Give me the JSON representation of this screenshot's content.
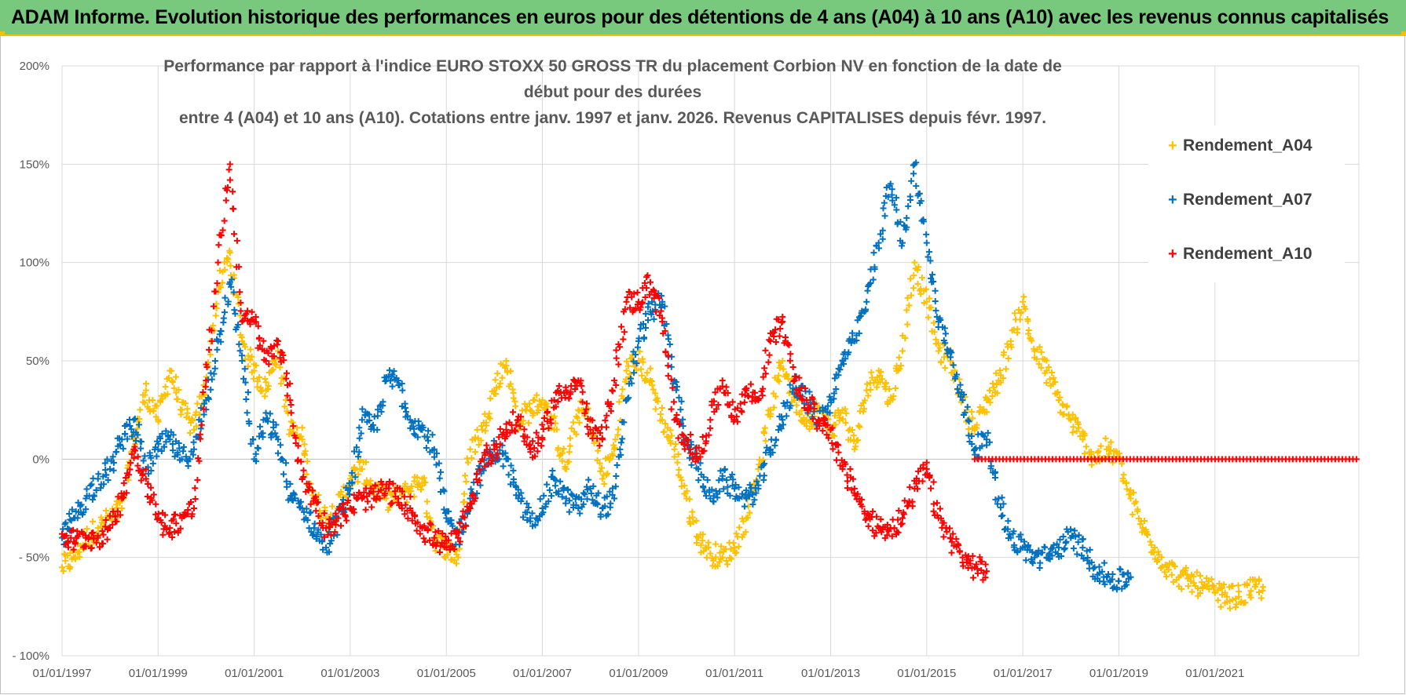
{
  "header": {
    "banner_title": "ADAM Informe. Evolution historique des performances en euros pour des détentions de 4 ans (A04) à 10 ans (A10) avec les revenus connus capitalisés",
    "banner_color": "#78c87e",
    "banner_border_color": "#f2c200"
  },
  "chart_data": {
    "type": "scatter",
    "title_line1": "Performance par rapport à l'indice EURO STOXX 50 GROSS TR  du placement Corbion NV en fonction de la date de début pour des durées",
    "title_line2": "entre 4 (A04) et 10 ans (A10).  Cotations entre janv. 1997 et janv. 2026. Revenus CAPITALISES depuis févr. 1997.",
    "xlabel": "",
    "ylabel": "",
    "x_range": [
      "1997-01-01",
      "2023-12-31"
    ],
    "ylim": [
      -100,
      200
    ],
    "y_ticks": [
      200,
      150,
      100,
      50,
      0,
      -50,
      -100
    ],
    "y_tick_labels": [
      "200%",
      "150%",
      "100%",
      "50%",
      "0%",
      "- 50%",
      "- 100%"
    ],
    "x_ticks": [
      "1997-01-01",
      "1999-01-01",
      "2001-01-01",
      "2003-01-01",
      "2005-01-01",
      "2007-01-01",
      "2009-01-01",
      "2011-01-01",
      "2013-01-01",
      "2015-01-01",
      "2017-01-01",
      "2019-01-01",
      "2021-01-01"
    ],
    "x_tick_labels": [
      "01/01/1997",
      "01/01/1999",
      "01/01/2001",
      "01/01/2003",
      "01/01/2005",
      "01/01/2007",
      "01/01/2009",
      "01/01/2011",
      "01/01/2013",
      "01/01/2015",
      "01/01/2017",
      "01/01/2019",
      "01/01/2021"
    ],
    "grid": true,
    "marker": "+",
    "legend_position": "top-right",
    "series": [
      {
        "name": "Rendement_A04",
        "color": "#ffc000",
        "points": [
          [
            "1997-01-01",
            -55
          ],
          [
            "1997-04-01",
            -50
          ],
          [
            "1997-07-01",
            -40
          ],
          [
            "1997-10-01",
            -35
          ],
          [
            "1998-01-01",
            -30
          ],
          [
            "1998-04-01",
            -25
          ],
          [
            "1998-07-01",
            10
          ],
          [
            "1998-10-01",
            35
          ],
          [
            "1999-01-01",
            20
          ],
          [
            "1999-04-01",
            45
          ],
          [
            "1999-07-01",
            25
          ],
          [
            "1999-10-01",
            15
          ],
          [
            "2000-01-01",
            40
          ],
          [
            "2000-04-01",
            85
          ],
          [
            "2000-07-01",
            105
          ],
          [
            "2000-10-01",
            60
          ],
          [
            "2001-01-01",
            45
          ],
          [
            "2001-04-01",
            35
          ],
          [
            "2001-07-01",
            55
          ],
          [
            "2001-10-01",
            15
          ],
          [
            "2002-01-01",
            10
          ],
          [
            "2002-04-01",
            -20
          ],
          [
            "2002-07-01",
            -30
          ],
          [
            "2002-10-01",
            -25
          ],
          [
            "2003-01-01",
            -10
          ],
          [
            "2003-04-01",
            -5
          ],
          [
            "2003-07-01",
            -15
          ],
          [
            "2003-10-01",
            -20
          ],
          [
            "2004-01-01",
            -20
          ],
          [
            "2004-04-01",
            -15
          ],
          [
            "2004-07-01",
            -10
          ],
          [
            "2004-10-01",
            -40
          ],
          [
            "2005-01-01",
            -45
          ],
          [
            "2005-04-01",
            -50
          ],
          [
            "2005-07-01",
            5
          ],
          [
            "2005-10-01",
            15
          ],
          [
            "2006-01-01",
            35
          ],
          [
            "2006-04-01",
            50
          ],
          [
            "2006-07-01",
            20
          ],
          [
            "2006-10-01",
            25
          ],
          [
            "2007-01-01",
            30
          ],
          [
            "2007-04-01",
            15
          ],
          [
            "2007-07-01",
            -5
          ],
          [
            "2007-10-01",
            25
          ],
          [
            "2008-01-01",
            20
          ],
          [
            "2008-04-01",
            -10
          ],
          [
            "2008-07-01",
            5
          ],
          [
            "2008-10-01",
            45
          ],
          [
            "2009-01-01",
            50
          ],
          [
            "2009-04-01",
            40
          ],
          [
            "2009-07-01",
            20
          ],
          [
            "2009-10-01",
            5
          ],
          [
            "2010-01-01",
            -20
          ],
          [
            "2010-04-01",
            -40
          ],
          [
            "2010-07-01",
            -48
          ],
          [
            "2010-10-01",
            -50
          ],
          [
            "2011-01-01",
            -45
          ],
          [
            "2011-04-01",
            -30
          ],
          [
            "2011-07-01",
            -5
          ],
          [
            "2011-10-01",
            25
          ],
          [
            "2012-01-01",
            50
          ],
          [
            "2012-04-01",
            30
          ],
          [
            "2012-07-01",
            20
          ],
          [
            "2012-10-01",
            25
          ],
          [
            "2013-01-01",
            15
          ],
          [
            "2013-04-01",
            25
          ],
          [
            "2013-07-01",
            5
          ],
          [
            "2013-10-01",
            35
          ],
          [
            "2014-01-01",
            45
          ],
          [
            "2014-04-01",
            30
          ],
          [
            "2014-07-01",
            55
          ],
          [
            "2014-10-01",
            100
          ],
          [
            "2015-01-01",
            80
          ],
          [
            "2015-04-01",
            55
          ],
          [
            "2015-07-01",
            50
          ],
          [
            "2015-10-01",
            30
          ],
          [
            "2016-01-01",
            15
          ],
          [
            "2016-04-01",
            30
          ],
          [
            "2016-07-01",
            40
          ],
          [
            "2016-10-01",
            60
          ],
          [
            "2017-01-01",
            80
          ],
          [
            "2017-04-01",
            55
          ],
          [
            "2017-07-01",
            45
          ],
          [
            "2017-10-01",
            30
          ],
          [
            "2018-01-01",
            20
          ],
          [
            "2018-04-01",
            10
          ],
          [
            "2018-07-01",
            0
          ],
          [
            "2018-10-01",
            5
          ],
          [
            "2019-01-01",
            0
          ],
          [
            "2019-04-01",
            -20
          ],
          [
            "2019-07-01",
            -35
          ],
          [
            "2019-10-01",
            -45
          ],
          [
            "2020-01-01",
            -55
          ],
          [
            "2020-04-01",
            -60
          ],
          [
            "2020-07-01",
            -62
          ],
          [
            "2020-10-01",
            -65
          ],
          [
            "2021-01-01",
            -68
          ],
          [
            "2021-04-01",
            -70
          ],
          [
            "2021-07-01",
            -70
          ],
          [
            "2021-10-01",
            -67
          ],
          [
            "2022-01-01",
            -65
          ]
        ]
      },
      {
        "name": "Rendement_A07",
        "color": "#0070c0",
        "points": [
          [
            "1997-01-01",
            -40
          ],
          [
            "1997-04-01",
            -30
          ],
          [
            "1997-07-01",
            -20
          ],
          [
            "1997-10-01",
            -10
          ],
          [
            "1998-01-01",
            -5
          ],
          [
            "1998-04-01",
            10
          ],
          [
            "1998-07-01",
            20
          ],
          [
            "1998-10-01",
            -5
          ],
          [
            "1999-01-01",
            5
          ],
          [
            "1999-04-01",
            10
          ],
          [
            "1999-07-01",
            0
          ],
          [
            "1999-10-01",
            5
          ],
          [
            "2000-01-01",
            30
          ],
          [
            "2000-04-01",
            60
          ],
          [
            "2000-07-01",
            90
          ],
          [
            "2000-10-01",
            50
          ],
          [
            "2001-01-01",
            0
          ],
          [
            "2001-04-01",
            20
          ],
          [
            "2001-07-01",
            10
          ],
          [
            "2001-10-01",
            -20
          ],
          [
            "2002-01-01",
            -25
          ],
          [
            "2002-04-01",
            -35
          ],
          [
            "2002-07-01",
            -45
          ],
          [
            "2002-10-01",
            -30
          ],
          [
            "2003-01-01",
            -15
          ],
          [
            "2003-04-01",
            20
          ],
          [
            "2003-07-01",
            15
          ],
          [
            "2003-10-01",
            40
          ],
          [
            "2004-01-01",
            40
          ],
          [
            "2004-04-01",
            20
          ],
          [
            "2004-07-01",
            15
          ],
          [
            "2004-10-01",
            5
          ],
          [
            "2005-01-01",
            -30
          ],
          [
            "2005-04-01",
            -40
          ],
          [
            "2005-07-01",
            -20
          ],
          [
            "2005-10-01",
            -5
          ],
          [
            "2006-01-01",
            5
          ],
          [
            "2006-04-01",
            0
          ],
          [
            "2006-07-01",
            -20
          ],
          [
            "2006-10-01",
            -30
          ],
          [
            "2007-01-01",
            -25
          ],
          [
            "2007-04-01",
            -10
          ],
          [
            "2007-07-01",
            -20
          ],
          [
            "2007-10-01",
            -25
          ],
          [
            "2008-01-01",
            -15
          ],
          [
            "2008-04-01",
            -25
          ],
          [
            "2008-07-01",
            -20
          ],
          [
            "2008-10-01",
            30
          ],
          [
            "2009-01-01",
            60
          ],
          [
            "2009-04-01",
            75
          ],
          [
            "2009-07-01",
            80
          ],
          [
            "2009-10-01",
            40
          ],
          [
            "2010-01-01",
            10
          ],
          [
            "2010-04-01",
            -5
          ],
          [
            "2010-07-01",
            -20
          ],
          [
            "2010-10-01",
            -10
          ],
          [
            "2011-01-01",
            -15
          ],
          [
            "2011-04-01",
            -20
          ],
          [
            "2011-07-01",
            -15
          ],
          [
            "2011-10-01",
            5
          ],
          [
            "2012-01-01",
            20
          ],
          [
            "2012-04-01",
            40
          ],
          [
            "2012-07-01",
            30
          ],
          [
            "2012-10-01",
            20
          ],
          [
            "2013-01-01",
            30
          ],
          [
            "2013-04-01",
            50
          ],
          [
            "2013-07-01",
            60
          ],
          [
            "2013-10-01",
            80
          ],
          [
            "2014-01-01",
            110
          ],
          [
            "2014-04-01",
            140
          ],
          [
            "2014-07-01",
            110
          ],
          [
            "2014-10-01",
            150
          ],
          [
            "2015-01-01",
            110
          ],
          [
            "2015-04-01",
            70
          ],
          [
            "2015-07-01",
            55
          ],
          [
            "2015-10-01",
            30
          ],
          [
            "2016-01-01",
            5
          ],
          [
            "2016-04-01",
            10
          ],
          [
            "2016-07-01",
            -20
          ],
          [
            "2016-10-01",
            -40
          ],
          [
            "2017-01-01",
            -45
          ],
          [
            "2017-04-01",
            -50
          ],
          [
            "2017-07-01",
            -50
          ],
          [
            "2017-10-01",
            -45
          ],
          [
            "2018-01-01",
            -40
          ],
          [
            "2018-04-01",
            -45
          ],
          [
            "2018-07-01",
            -55
          ],
          [
            "2018-10-01",
            -60
          ],
          [
            "2019-01-01",
            -62
          ],
          [
            "2019-04-01",
            -60
          ]
        ]
      },
      {
        "name": "Rendement_A10",
        "color": "#ff0000",
        "points": [
          [
            "1997-01-01",
            -38
          ],
          [
            "1997-04-01",
            -42
          ],
          [
            "1997-07-01",
            -40
          ],
          [
            "1997-10-01",
            -40
          ],
          [
            "1998-01-01",
            -35
          ],
          [
            "1998-04-01",
            -20
          ],
          [
            "1998-07-01",
            5
          ],
          [
            "1998-10-01",
            -10
          ],
          [
            "1999-01-01",
            -30
          ],
          [
            "1999-04-01",
            -35
          ],
          [
            "1999-07-01",
            -30
          ],
          [
            "1999-10-01",
            -25
          ],
          [
            "2000-01-01",
            40
          ],
          [
            "2000-04-01",
            100
          ],
          [
            "2000-07-01",
            150
          ],
          [
            "2000-10-01",
            70
          ],
          [
            "2001-01-01",
            70
          ],
          [
            "2001-04-01",
            50
          ],
          [
            "2001-07-01",
            60
          ],
          [
            "2001-10-01",
            30
          ],
          [
            "2002-01-01",
            -10
          ],
          [
            "2002-04-01",
            -20
          ],
          [
            "2002-07-01",
            -35
          ],
          [
            "2002-10-01",
            -30
          ],
          [
            "2003-01-01",
            -25
          ],
          [
            "2003-04-01",
            -20
          ],
          [
            "2003-07-01",
            -20
          ],
          [
            "2003-10-01",
            -15
          ],
          [
            "2004-01-01",
            -20
          ],
          [
            "2004-04-01",
            -25
          ],
          [
            "2004-07-01",
            -35
          ],
          [
            "2004-10-01",
            -40
          ],
          [
            "2005-01-01",
            -45
          ],
          [
            "2005-04-01",
            -40
          ],
          [
            "2005-07-01",
            -25
          ],
          [
            "2005-10-01",
            0
          ],
          [
            "2006-01-01",
            5
          ],
          [
            "2006-04-01",
            15
          ],
          [
            "2006-07-01",
            20
          ],
          [
            "2006-10-01",
            5
          ],
          [
            "2007-01-01",
            10
          ],
          [
            "2007-04-01",
            30
          ],
          [
            "2007-07-01",
            35
          ],
          [
            "2007-10-01",
            40
          ],
          [
            "2008-01-01",
            15
          ],
          [
            "2008-04-01",
            10
          ],
          [
            "2008-07-01",
            40
          ],
          [
            "2008-10-01",
            80
          ],
          [
            "2009-01-01",
            80
          ],
          [
            "2009-04-01",
            90
          ],
          [
            "2009-07-01",
            70
          ],
          [
            "2009-10-01",
            20
          ],
          [
            "2010-01-01",
            10
          ],
          [
            "2010-04-01",
            0
          ],
          [
            "2010-07-01",
            20
          ],
          [
            "2010-10-01",
            40
          ],
          [
            "2011-01-01",
            20
          ],
          [
            "2011-04-01",
            35
          ],
          [
            "2011-07-01",
            30
          ],
          [
            "2011-10-01",
            60
          ],
          [
            "2012-01-01",
            70
          ],
          [
            "2012-04-01",
            40
          ],
          [
            "2012-07-01",
            30
          ],
          [
            "2012-10-01",
            20
          ],
          [
            "2013-01-01",
            15
          ],
          [
            "2013-04-01",
            -5
          ],
          [
            "2013-07-01",
            -15
          ],
          [
            "2013-10-01",
            -30
          ],
          [
            "2014-01-01",
            -35
          ],
          [
            "2014-04-01",
            -35
          ],
          [
            "2014-07-01",
            -30
          ],
          [
            "2014-10-01",
            -15
          ],
          [
            "2015-01-01",
            -5
          ],
          [
            "2015-04-01",
            -30
          ],
          [
            "2015-07-01",
            -40
          ],
          [
            "2015-10-01",
            -50
          ],
          [
            "2016-01-01",
            -55
          ],
          [
            "2016-04-01",
            -57
          ]
        ],
        "flat_segment": {
          "from": "2016-01-01",
          "to": "2023-12-31",
          "value": 0
        }
      }
    ]
  }
}
